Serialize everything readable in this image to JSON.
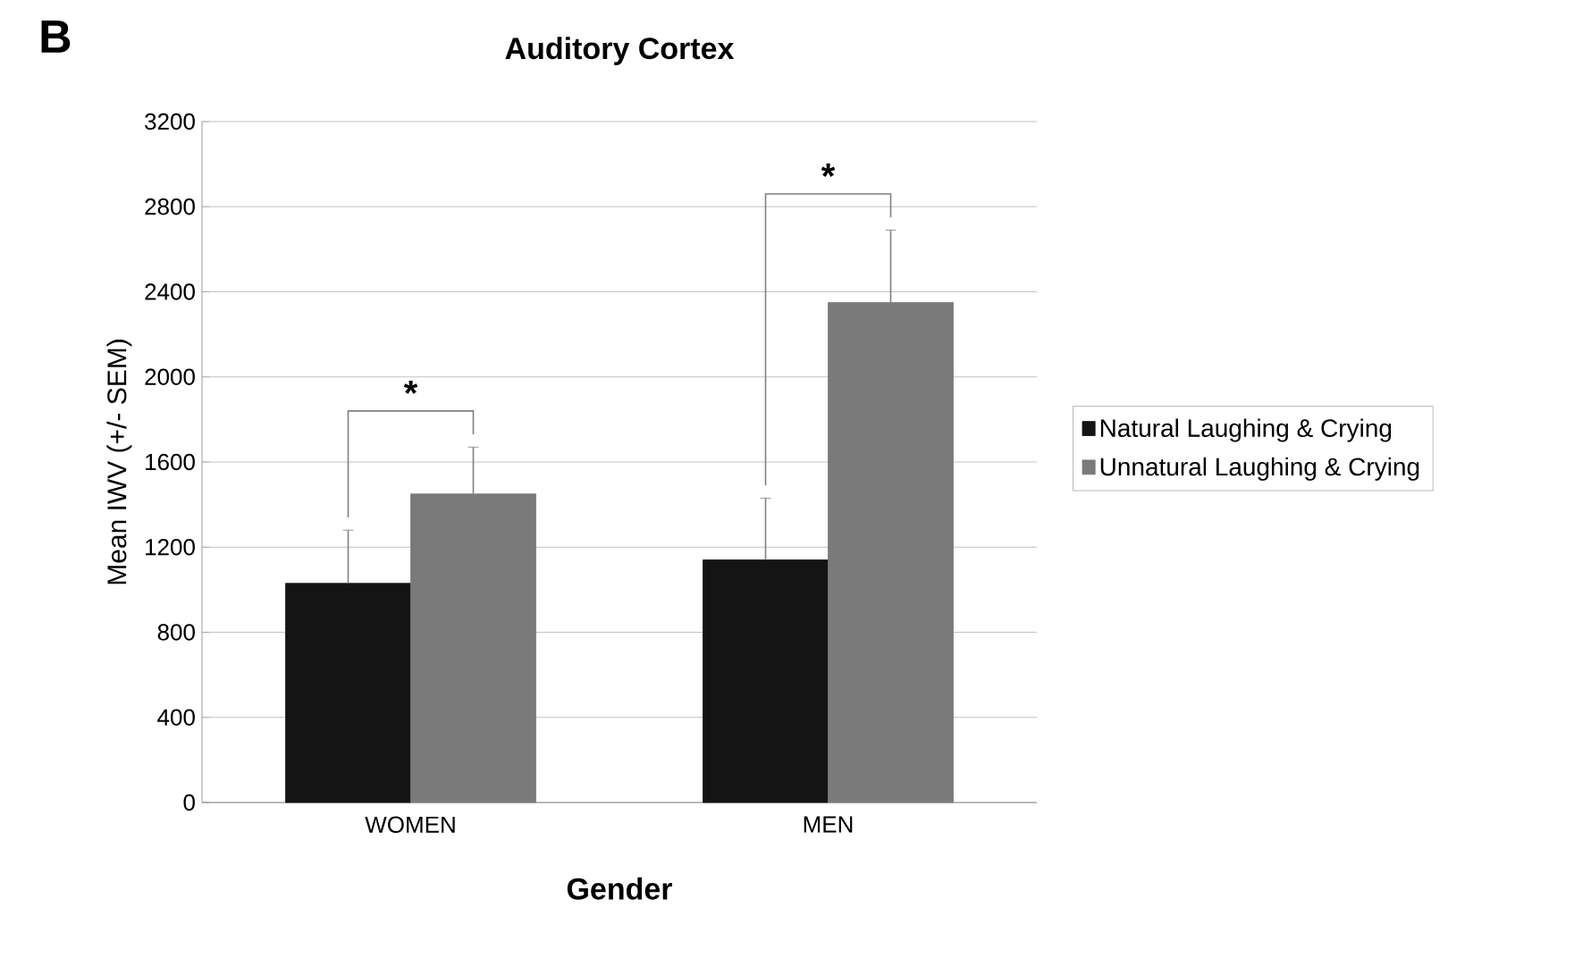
{
  "chart_data": {
    "type": "bar",
    "title": "Auditory Cortex",
    "xlabel": "Gender",
    "ylabel": "Mean IWV (+/- SEM)",
    "categories": [
      "WOMEN",
      "MEN"
    ],
    "series": [
      {
        "name": "Natural Laughing & Crying",
        "color": "#141414",
        "values": [
          1030,
          1140
        ],
        "errors": [
          250,
          290
        ]
      },
      {
        "name": "Unnatural Laughing & Crying",
        "color": "#7a7a7a",
        "values": [
          1450,
          2350
        ],
        "errors": [
          220,
          340
        ]
      }
    ],
    "ylim": [
      0,
      3200
    ],
    "yticks": [
      0,
      400,
      800,
      1200,
      1600,
      2000,
      2400,
      2800,
      3200
    ],
    "grid": "y",
    "legend": "right",
    "annotations": [
      "B",
      "*",
      "*"
    ]
  }
}
